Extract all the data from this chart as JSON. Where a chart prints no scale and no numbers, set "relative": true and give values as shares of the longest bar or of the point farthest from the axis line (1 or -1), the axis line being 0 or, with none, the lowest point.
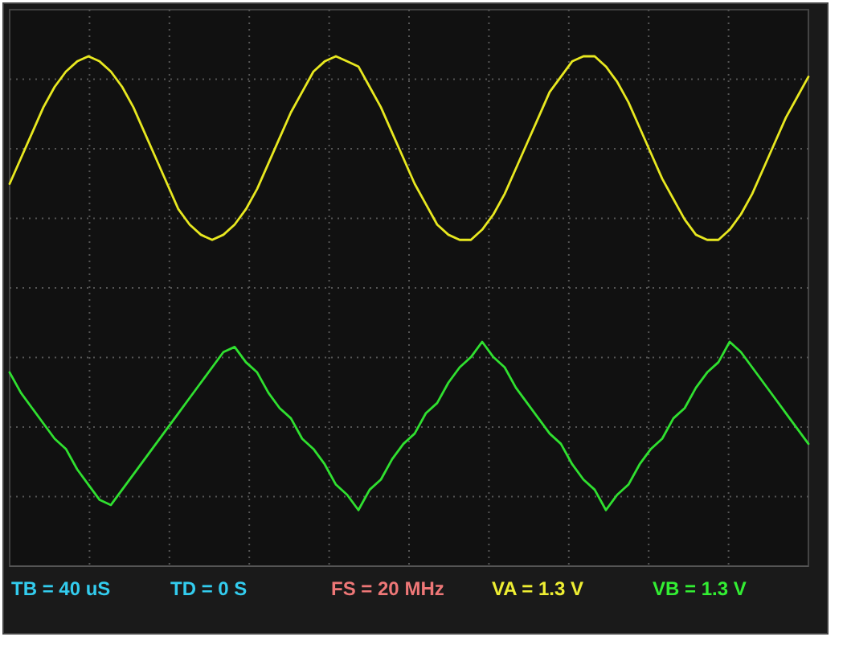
{
  "chart_data": {
    "type": "line",
    "relative": true,
    "grid": true,
    "marker": "none",
    "line_style": "solid",
    "categories": [
      null,
      null,
      null,
      null,
      null,
      null,
      null,
      null,
      null,
      null,
      null,
      null,
      null,
      null,
      null,
      null,
      null,
      null,
      null,
      null,
      null,
      null,
      null,
      null,
      null,
      null,
      null,
      null,
      null,
      null,
      null,
      null,
      null,
      null,
      null,
      null,
      null,
      null,
      null,
      null,
      null,
      null,
      null,
      null,
      null,
      null,
      null,
      null,
      null,
      null,
      null,
      null,
      null,
      null,
      null,
      null,
      null,
      null,
      null,
      null,
      null,
      null,
      null,
      null,
      null,
      null,
      null,
      null,
      null,
      null,
      null,
      null
    ],
    "series": [
      {
        "color": "#e8e820",
        "values": [
          0.75,
          0.8,
          0.85,
          0.9,
          0.94,
          0.97,
          0.99,
          1.0,
          0.99,
          0.97,
          0.94,
          0.9,
          0.85,
          0.8,
          0.75,
          0.7,
          0.67,
          0.65,
          0.64,
          0.65,
          0.67,
          0.7,
          0.74,
          0.79,
          0.84,
          0.89,
          0.93,
          0.97,
          0.99,
          1.0,
          0.99,
          0.98,
          0.94,
          0.9,
          0.85,
          0.8,
          0.75,
          0.71,
          0.67,
          0.65,
          0.64,
          0.64,
          0.66,
          0.69,
          0.73,
          0.78,
          0.83,
          0.88,
          0.93,
          0.96,
          0.99,
          1.0,
          1.0,
          0.98,
          0.95,
          0.91,
          0.86,
          0.81,
          0.76,
          0.72,
          0.68,
          0.65,
          0.64,
          0.64,
          0.66,
          0.69,
          0.73,
          0.78,
          0.83,
          0.88,
          0.92,
          0.96
        ]
      },
      {
        "color": "#30e030",
        "values": [
          0.38,
          0.34,
          0.31,
          0.28,
          0.25,
          0.23,
          0.19,
          0.16,
          0.13,
          0.12,
          0.15,
          0.18,
          0.21,
          0.24,
          0.27,
          0.3,
          0.33,
          0.36,
          0.39,
          0.42,
          0.43,
          0.4,
          0.38,
          0.34,
          0.31,
          0.29,
          0.25,
          0.23,
          0.2,
          0.16,
          0.14,
          0.11,
          0.15,
          0.17,
          0.21,
          0.24,
          0.26,
          0.3,
          0.32,
          0.36,
          0.39,
          0.41,
          0.44,
          0.41,
          0.39,
          0.35,
          0.32,
          0.29,
          0.26,
          0.24,
          0.2,
          0.17,
          0.15,
          0.11,
          0.14,
          0.16,
          0.2,
          0.23,
          0.25,
          0.29,
          0.31,
          0.35,
          0.38,
          0.4,
          0.44,
          0.42,
          0.39,
          0.36,
          0.33,
          0.3,
          0.27,
          0.24
        ]
      }
    ],
    "annotations": [
      "TB = 40 uS",
      "TD = 0 S",
      "FS = 20 MHz",
      "VA = 1.3 V",
      "VB = 1.3 V"
    ]
  }
}
